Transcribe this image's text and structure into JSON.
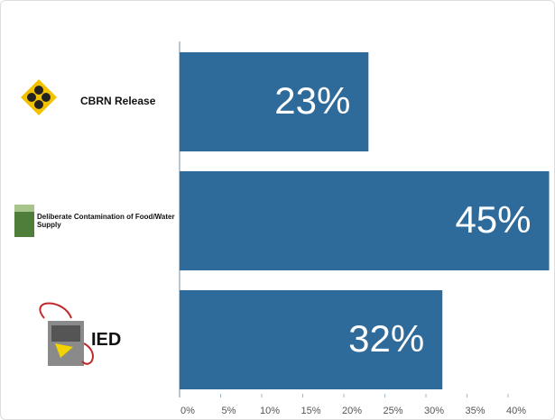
{
  "chart_data": {
    "type": "bar",
    "orientation": "horizontal",
    "categories": [
      "CBRN Release",
      "Deliberate Contamination of Food/Water Supply",
      "IED"
    ],
    "values": [
      23,
      45,
      32
    ],
    "value_labels": [
      "23%",
      "45%",
      "32%"
    ],
    "color": "#2e6b9a",
    "xlim": [
      0,
      45
    ],
    "xticks": [
      {
        "value": 0,
        "label": "0%"
      },
      {
        "value": 5,
        "label": "5%"
      },
      {
        "value": 10,
        "label": "10%"
      },
      {
        "value": 15,
        "label": "15%"
      },
      {
        "value": 20,
        "label": "20%"
      },
      {
        "value": 25,
        "label": "25%"
      },
      {
        "value": 30,
        "label": "30%"
      },
      {
        "value": 35,
        "label": "35%"
      },
      {
        "value": 40,
        "label": "40%"
      }
    ],
    "grid": false
  }
}
